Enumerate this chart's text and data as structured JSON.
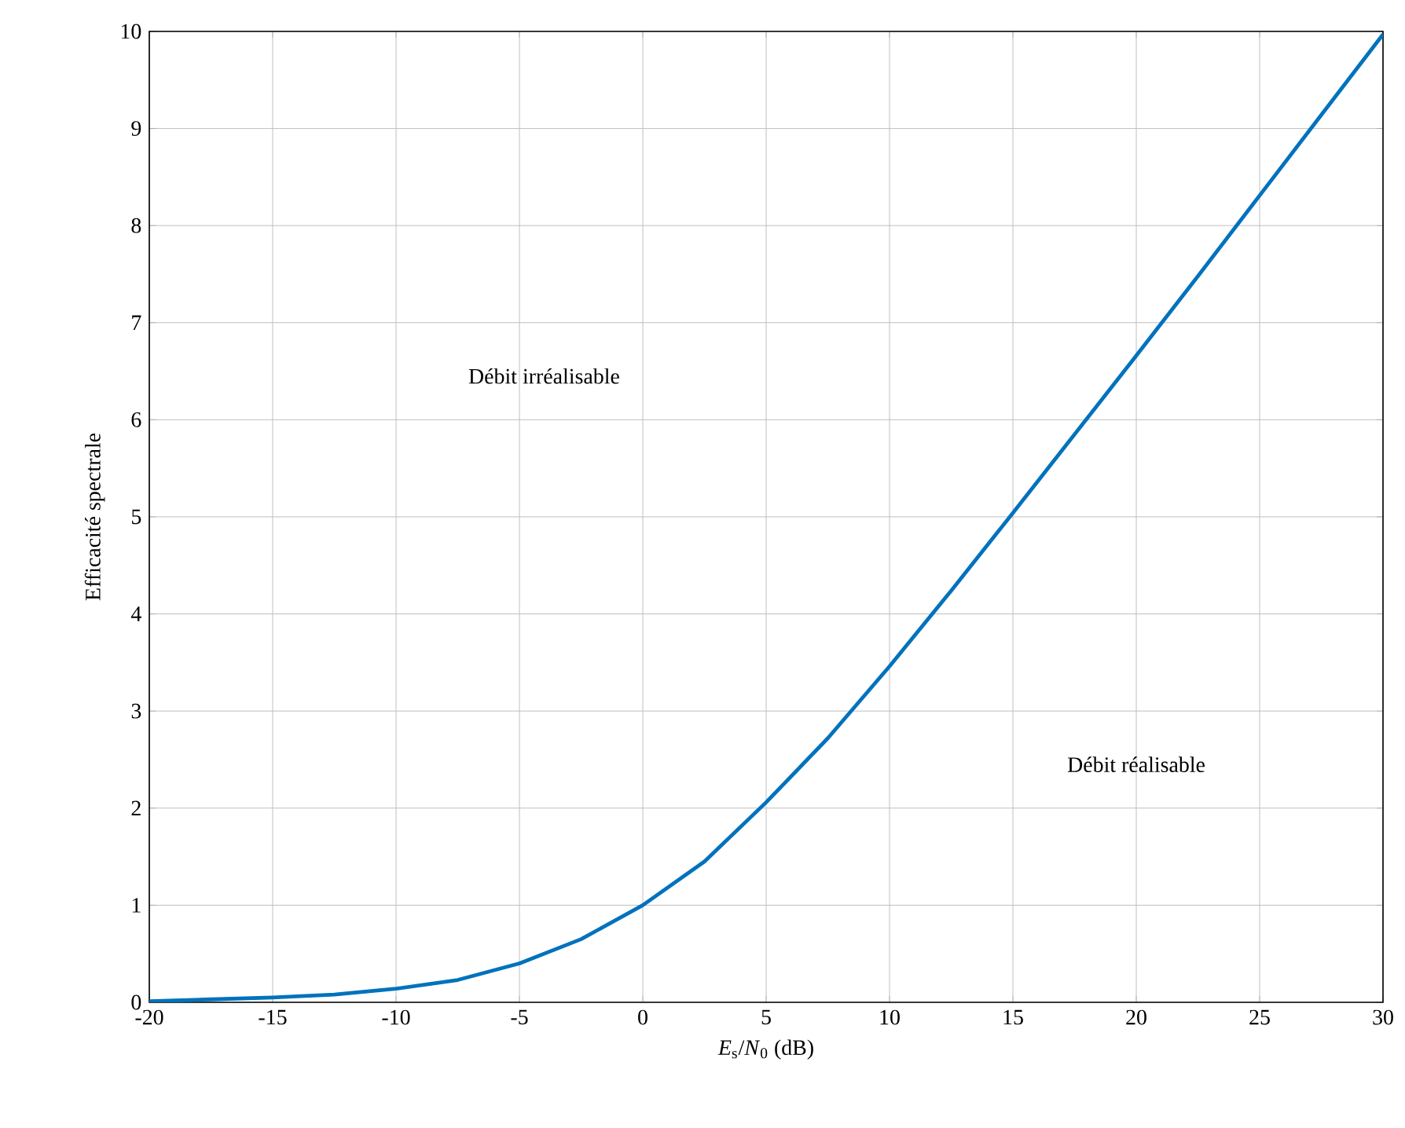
{
  "chart_data": {
    "type": "line",
    "xlabel": "*E*$_{s}$/*N*$_{0}$ (dB)",
    "ylabel": "Efficacité spectrale",
    "x": [
      -20,
      -17.5,
      -15,
      -12.5,
      -10,
      -7.5,
      -5,
      -2.5,
      0,
      2.5,
      5,
      7.5,
      10,
      12.5,
      15,
      17.5,
      20,
      22.5,
      25,
      27.5,
      30
    ],
    "series": [
      {
        "color": "#0072bd",
        "values": [
          0.01,
          0.03,
          0.05,
          0.08,
          0.14,
          0.23,
          0.4,
          0.65,
          1.0,
          1.45,
          2.06,
          2.72,
          3.46,
          4.24,
          5.04,
          5.85,
          6.66,
          7.48,
          8.31,
          9.14,
          9.97
        ]
      }
    ],
    "xlim": [
      -20,
      30
    ],
    "ylim": [
      0,
      10
    ],
    "xticks": [
      -20,
      -15,
      -10,
      -5,
      0,
      5,
      10,
      15,
      20,
      25,
      30
    ],
    "yticks": [
      0,
      1,
      2,
      3,
      4,
      5,
      6,
      7,
      8,
      9,
      10
    ],
    "grid": true,
    "marker": "none",
    "line_style": "solid",
    "annotations": [
      "Débit irréalisable",
      "Débit réalisable"
    ]
  }
}
